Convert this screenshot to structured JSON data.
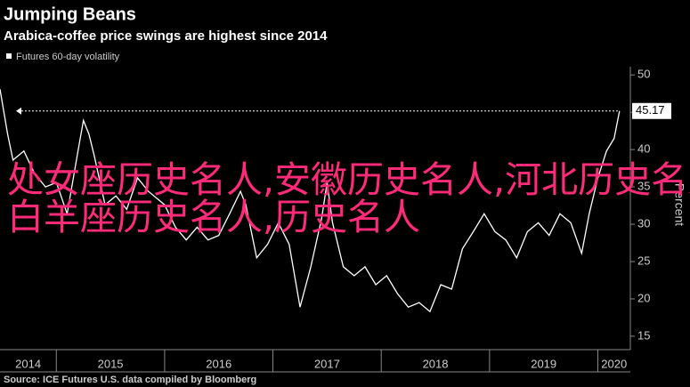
{
  "chart_data": {
    "type": "line",
    "title": "Jumping Beans",
    "subtitle": "Arabica-coffee price swings are highest since 2014",
    "y_label": "Percent",
    "source": "Source: ICE Futures U.S. data compiled by Bloomberg",
    "overlay_text": "处女座历史名人,安徽历史名人,河北历史名人,白羊座历史名人,历史名人",
    "x": [
      2014.48,
      2014.55,
      2014.6,
      2014.7,
      2014.8,
      2014.9,
      2015.0,
      2015.1,
      2015.2,
      2015.25,
      2015.3,
      2015.35,
      2015.45,
      2015.55,
      2015.65,
      2015.75,
      2015.85,
      2016.0,
      2016.1,
      2016.2,
      2016.3,
      2016.4,
      2016.5,
      2016.6,
      2016.7,
      2016.75,
      2016.85,
      2016.95,
      2017.05,
      2017.15,
      2017.25,
      2017.35,
      2017.45,
      2017.5,
      2017.55,
      2017.65,
      2017.75,
      2017.85,
      2017.95,
      2018.05,
      2018.15,
      2018.25,
      2018.35,
      2018.45,
      2018.55,
      2018.65,
      2018.75,
      2018.85,
      2018.95,
      2019.05,
      2019.15,
      2019.25,
      2019.35,
      2019.45,
      2019.55,
      2019.65,
      2019.75,
      2019.85,
      2019.92,
      2020.0,
      2020.08,
      2020.15,
      2020.2
    ],
    "series": [
      {
        "name": "Futures 60-day volatility",
        "color": "#ffffff",
        "values": [
          48.1,
          42.1,
          38.6,
          39.8,
          36.8,
          35,
          35.6,
          31.4,
          39.8,
          43.9,
          42.1,
          39.2,
          32.6,
          33.8,
          32,
          36.2,
          34.4,
          32.6,
          29.6,
          27.9,
          29.6,
          27.9,
          28.5,
          31.4,
          34.4,
          32.6,
          25.5,
          27.3,
          30.2,
          27.3,
          18.9,
          24.3,
          30.8,
          35.6,
          30.2,
          24.3,
          23.1,
          24.3,
          21.9,
          23.1,
          20.7,
          18.9,
          19.5,
          18.3,
          21.9,
          21.3,
          26.7,
          29,
          31.4,
          29,
          27.9,
          25.5,
          29,
          30.2,
          28.5,
          31.4,
          30.2,
          26.1,
          31.4,
          36.2,
          39.8,
          41.5,
          45.17
        ]
      }
    ],
    "xlim": [
      2014.48,
      2020.3
    ],
    "xticks": [
      2014,
      2015,
      2016,
      2017,
      2018,
      2019,
      2020
    ],
    "ylim": [
      13.2,
      51.1
    ],
    "yticks": [
      15,
      20,
      25,
      30,
      35,
      40,
      45,
      50
    ]
  }
}
